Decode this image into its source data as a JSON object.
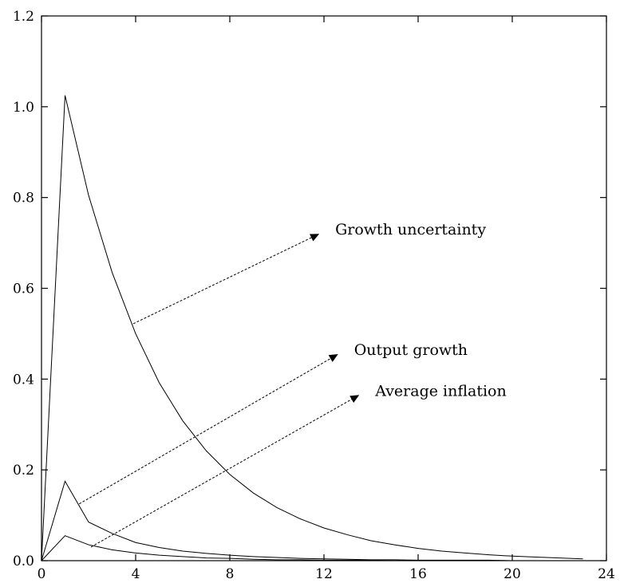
{
  "chart_data": {
    "type": "line",
    "title": "",
    "xlabel": "",
    "ylabel": "",
    "xlim": [
      0,
      24
    ],
    "ylim": [
      0,
      1.2
    ],
    "xticks": [
      0,
      4,
      8,
      12,
      16,
      20,
      24
    ],
    "yticks": [
      0.0,
      0.2,
      0.4,
      0.6,
      0.8,
      1.0,
      1.2
    ],
    "xtick_labels": [
      "0",
      "4",
      "8",
      "12",
      "16",
      "20",
      "24"
    ],
    "ytick_labels": [
      "0.0",
      "0.2",
      "0.4",
      "0.6",
      "0.8",
      "1.0",
      "1.2"
    ],
    "grid": false,
    "series": [
      {
        "id": "growth-uncertainty",
        "x": [
          0,
          1,
          2,
          3,
          4,
          5,
          6,
          7,
          8,
          9,
          10,
          11,
          12,
          13,
          14,
          15,
          16,
          17,
          18,
          19,
          20,
          21,
          22,
          23
        ],
        "values": [
          0.0,
          1.025,
          0.805,
          0.635,
          0.5,
          0.392,
          0.308,
          0.242,
          0.19,
          0.149,
          0.117,
          0.092,
          0.072,
          0.057,
          0.044,
          0.035,
          0.027,
          0.021,
          0.017,
          0.013,
          0.01,
          0.008,
          0.006,
          0.004
        ]
      },
      {
        "id": "output-growth",
        "x": [
          0,
          1,
          2,
          3,
          4,
          5,
          6,
          7,
          8,
          9,
          10,
          11,
          12,
          13,
          14,
          15,
          16,
          17,
          18,
          19,
          20,
          21,
          22,
          23
        ],
        "values": [
          0.0,
          0.175,
          0.085,
          0.06,
          0.04,
          0.029,
          0.021,
          0.016,
          0.012,
          0.009,
          0.007,
          0.005,
          0.004,
          0.003,
          0.002,
          0.002,
          0.001,
          0.001,
          0.001,
          0.001,
          0.0,
          0.0,
          0.0,
          0.0
        ]
      },
      {
        "id": "average-inflation",
        "x": [
          0,
          1,
          2,
          3,
          4,
          5,
          6,
          7,
          8,
          9,
          10,
          11,
          12,
          13,
          14,
          15,
          16,
          17,
          18,
          19,
          20,
          21,
          22,
          23
        ],
        "values": [
          0.0,
          0.055,
          0.035,
          0.024,
          0.017,
          0.012,
          0.009,
          0.006,
          0.005,
          0.003,
          0.002,
          0.002,
          0.001,
          0.001,
          0.001,
          0.0,
          0.0,
          0.0,
          0.0,
          0.0,
          0.0,
          0.0,
          0.0,
          0.0
        ]
      }
    ],
    "annotations": [
      {
        "id": "growth-uncertainty",
        "text": "Growth uncertainty",
        "from": [
          3.9,
          0.522
        ],
        "to": [
          11.8,
          0.72
        ]
      },
      {
        "id": "output-growth",
        "text": "Output growth",
        "from": [
          1.6,
          0.125
        ],
        "to": [
          12.6,
          0.455
        ]
      },
      {
        "id": "average-inflation",
        "text": "Average inflation",
        "from": [
          2.1,
          0.03
        ],
        "to": [
          13.5,
          0.365
        ]
      }
    ]
  }
}
